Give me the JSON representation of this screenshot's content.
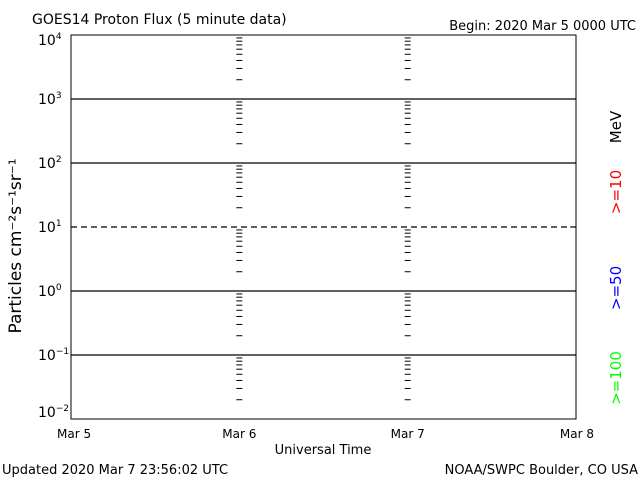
{
  "header": {
    "title": "GOES14 Proton Flux (5 minute data)",
    "begin": "Begin: 2020 Mar 5 0000 UTC"
  },
  "footer": {
    "updated": "Updated 2020 Mar  7 23:56:02 UTC",
    "credit": "NOAA/SWPC Boulder, CO USA"
  },
  "chart_data": {
    "type": "line",
    "title": "GOES14 Proton Flux (5 minute data)",
    "xlabel": "Universal Time",
    "ylabel": "Particles cm⁻²s⁻¹sr⁻¹",
    "y_scale": "log",
    "ylim": [
      0.01,
      10000
    ],
    "y_ticks": [
      {
        "base": "10",
        "exp": "4"
      },
      {
        "base": "10",
        "exp": "3"
      },
      {
        "base": "10",
        "exp": "2"
      },
      {
        "base": "10",
        "exp": "1"
      },
      {
        "base": "10",
        "exp": "0"
      },
      {
        "base": "10",
        "exp": "−1"
      },
      {
        "base": "10",
        "exp": "−2"
      }
    ],
    "x_ticks": [
      "Mar 5",
      "Mar 6",
      "Mar 7",
      "Mar 8"
    ],
    "reference_lines": [
      {
        "value": 1000,
        "style": "solid"
      },
      {
        "value": 100,
        "style": "solid"
      },
      {
        "value": 10,
        "style": "dashed"
      },
      {
        "value": 1,
        "style": "solid"
      },
      {
        "value": 0.1,
        "style": "solid"
      }
    ],
    "series": [],
    "legend": {
      "placement": "right",
      "unit": "MeV",
      "entries": [
        {
          "label": ">=10",
          "color": "#ff0000"
        },
        {
          "label": ">=50",
          "color": "#0000ff"
        },
        {
          "label": ">=100",
          "color": "#00ff00"
        }
      ]
    }
  }
}
